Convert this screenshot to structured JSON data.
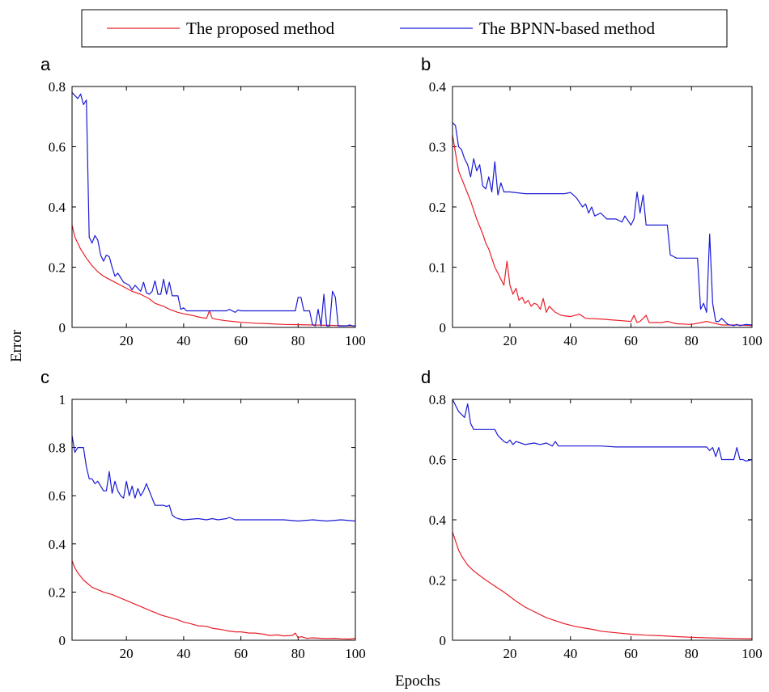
{
  "figure": {
    "xlabel": "Epochs",
    "ylabel": "Error",
    "legend": {
      "placement": "top-center",
      "entries": [
        {
          "label": "The proposed method",
          "color": "#e8202a"
        },
        {
          "label": "The BPNN-based method",
          "color": "#1a1ad6"
        }
      ]
    }
  },
  "chart_data": [
    {
      "type": "line",
      "panel": "a",
      "xlim": [
        1,
        100
      ],
      "ylim": [
        0,
        0.8
      ],
      "xticks": [
        20,
        40,
        60,
        80,
        100
      ],
      "yticks": [
        0,
        0.2,
        0.4,
        0.6,
        0.8
      ],
      "ytick_labels": [
        "0",
        "0.2",
        "0.4",
        "0.6",
        "0.8"
      ],
      "series": [
        {
          "name": "The proposed method",
          "color": "#e8202a",
          "x": [
            1,
            2,
            4,
            6,
            8,
            10,
            12,
            15,
            18,
            20,
            22,
            25,
            28,
            30,
            33,
            35,
            38,
            40,
            43,
            45,
            48,
            49,
            50,
            52,
            55,
            58,
            60,
            65,
            70,
            75,
            80,
            85,
            90,
            95,
            100
          ],
          "y": [
            0.34,
            0.3,
            0.26,
            0.23,
            0.205,
            0.185,
            0.17,
            0.155,
            0.14,
            0.13,
            0.12,
            0.11,
            0.095,
            0.08,
            0.07,
            0.06,
            0.05,
            0.045,
            0.04,
            0.035,
            0.03,
            0.055,
            0.03,
            0.026,
            0.022,
            0.019,
            0.017,
            0.014,
            0.012,
            0.01,
            0.009,
            0.008,
            0.007,
            0.006,
            0.005
          ]
        },
        {
          "name": "The BPNN-based method",
          "color": "#1a1ad6",
          "x": [
            1,
            2,
            3,
            4,
            5,
            6,
            7,
            8,
            9,
            10,
            11,
            12,
            13,
            14,
            15,
            16,
            17,
            18,
            19,
            20,
            21,
            22,
            23,
            24,
            25,
            26,
            27,
            28,
            29,
            30,
            31,
            32,
            33,
            34,
            35,
            36,
            37,
            38,
            39,
            40,
            41,
            42,
            45,
            50,
            55,
            56,
            58,
            59,
            60,
            65,
            70,
            75,
            79,
            80,
            81,
            82,
            83,
            84,
            85,
            86,
            87,
            88,
            89,
            90,
            91,
            92,
            93,
            94,
            95,
            96,
            97,
            98,
            99,
            100
          ],
          "y": [
            0.78,
            0.77,
            0.76,
            0.775,
            0.74,
            0.755,
            0.3,
            0.28,
            0.305,
            0.29,
            0.24,
            0.22,
            0.24,
            0.235,
            0.2,
            0.17,
            0.18,
            0.165,
            0.15,
            0.145,
            0.14,
            0.125,
            0.14,
            0.13,
            0.12,
            0.15,
            0.115,
            0.11,
            0.12,
            0.155,
            0.11,
            0.11,
            0.16,
            0.11,
            0.15,
            0.105,
            0.105,
            0.105,
            0.06,
            0.065,
            0.055,
            0.055,
            0.055,
            0.055,
            0.055,
            0.06,
            0.05,
            0.058,
            0.055,
            0.055,
            0.055,
            0.055,
            0.055,
            0.1,
            0.1,
            0.055,
            0.055,
            0.055,
            0.01,
            0.005,
            0.06,
            0.005,
            0.11,
            0.005,
            0.005,
            0.12,
            0.1,
            0.005,
            0.005,
            0.005,
            0.005,
            0.008,
            0.005,
            0.005
          ]
        }
      ]
    },
    {
      "type": "line",
      "panel": "b",
      "xlim": [
        1,
        100
      ],
      "ylim": [
        0,
        0.4
      ],
      "xticks": [
        20,
        40,
        60,
        80,
        100
      ],
      "yticks": [
        0,
        0.1,
        0.2,
        0.3,
        0.4
      ],
      "ytick_labels": [
        "0",
        "0.1",
        "0.2",
        "0.3",
        "0.4"
      ],
      "series": [
        {
          "name": "The proposed method",
          "color": "#e8202a",
          "x": [
            1,
            2,
            3,
            5,
            7,
            9,
            11,
            12,
            13,
            15,
            16,
            17,
            18,
            19,
            20,
            21,
            22,
            23,
            24,
            25,
            26,
            27,
            28,
            29,
            30,
            31,
            32,
            33,
            35,
            37,
            40,
            43,
            45,
            50,
            55,
            60,
            61,
            62,
            63,
            65,
            66,
            67,
            70,
            72,
            75,
            80,
            85,
            90,
            95,
            100
          ],
          "y": [
            0.32,
            0.29,
            0.26,
            0.235,
            0.21,
            0.18,
            0.155,
            0.14,
            0.13,
            0.1,
            0.09,
            0.08,
            0.07,
            0.11,
            0.07,
            0.055,
            0.065,
            0.045,
            0.05,
            0.04,
            0.045,
            0.035,
            0.04,
            0.038,
            0.03,
            0.048,
            0.025,
            0.035,
            0.025,
            0.02,
            0.018,
            0.022,
            0.015,
            0.014,
            0.012,
            0.01,
            0.02,
            0.008,
            0.01,
            0.02,
            0.008,
            0.008,
            0.008,
            0.01,
            0.006,
            0.005,
            0.01,
            0.004,
            0.004,
            0.003
          ]
        },
        {
          "name": "The BPNN-based method",
          "color": "#1a1ad6",
          "x": [
            1,
            2,
            3,
            4,
            5,
            6,
            7,
            8,
            9,
            10,
            11,
            12,
            13,
            14,
            15,
            16,
            17,
            18,
            20,
            25,
            30,
            35,
            38,
            40,
            42,
            44,
            45,
            46,
            47,
            48,
            50,
            52,
            55,
            57,
            58,
            60,
            61,
            62,
            63,
            64,
            65,
            66,
            70,
            72,
            73,
            74,
            75,
            80,
            82,
            83,
            84,
            85,
            86,
            87,
            88,
            89,
            90,
            92,
            94,
            95,
            96,
            98,
            100
          ],
          "y": [
            0.34,
            0.335,
            0.3,
            0.295,
            0.28,
            0.27,
            0.25,
            0.28,
            0.26,
            0.27,
            0.235,
            0.23,
            0.25,
            0.225,
            0.275,
            0.22,
            0.24,
            0.225,
            0.225,
            0.222,
            0.222,
            0.222,
            0.222,
            0.224,
            0.215,
            0.2,
            0.205,
            0.19,
            0.2,
            0.185,
            0.19,
            0.18,
            0.18,
            0.175,
            0.185,
            0.17,
            0.18,
            0.225,
            0.19,
            0.22,
            0.17,
            0.17,
            0.17,
            0.17,
            0.12,
            0.118,
            0.115,
            0.115,
            0.115,
            0.03,
            0.04,
            0.025,
            0.155,
            0.04,
            0.01,
            0.01,
            0.015,
            0.005,
            0.003,
            0.005,
            0.003,
            0.005,
            0.004
          ]
        }
      ]
    },
    {
      "type": "line",
      "panel": "c",
      "xlim": [
        1,
        100
      ],
      "ylim": [
        0,
        1
      ],
      "xticks": [
        20,
        40,
        60,
        80,
        100
      ],
      "yticks": [
        0,
        0.2,
        0.4,
        0.6,
        0.8,
        1
      ],
      "ytick_labels": [
        "0",
        "0.2",
        "0.4",
        "0.6",
        "0.8",
        "1"
      ],
      "series": [
        {
          "name": "The proposed method",
          "color": "#e8202a",
          "x": [
            1,
            2,
            3,
            4,
            5,
            6,
            7,
            8,
            10,
            12,
            15,
            18,
            20,
            22,
            25,
            28,
            30,
            32,
            35,
            38,
            40,
            42,
            45,
            48,
            50,
            53,
            55,
            58,
            60,
            63,
            65,
            68,
            70,
            73,
            75,
            78,
            79,
            80,
            81,
            83,
            85,
            88,
            90,
            93,
            95,
            98,
            100
          ],
          "y": [
            0.33,
            0.3,
            0.28,
            0.265,
            0.25,
            0.24,
            0.23,
            0.22,
            0.21,
            0.2,
            0.19,
            0.175,
            0.165,
            0.155,
            0.14,
            0.125,
            0.115,
            0.105,
            0.095,
            0.085,
            0.075,
            0.07,
            0.06,
            0.058,
            0.05,
            0.045,
            0.04,
            0.035,
            0.035,
            0.03,
            0.03,
            0.025,
            0.02,
            0.022,
            0.018,
            0.02,
            0.03,
            0.01,
            0.015,
            0.008,
            0.01,
            0.008,
            0.007,
            0.008,
            0.006,
            0.005,
            0.008
          ]
        },
        {
          "name": "The BPNN-based method",
          "color": "#1a1ad6",
          "x": [
            1,
            2,
            3,
            4,
            5,
            6,
            7,
            8,
            9,
            10,
            11,
            12,
            13,
            14,
            15,
            16,
            17,
            18,
            19,
            20,
            21,
            22,
            23,
            24,
            25,
            26,
            27,
            30,
            33,
            34,
            35,
            36,
            37,
            38,
            40,
            45,
            48,
            50,
            52,
            55,
            56,
            58,
            60,
            65,
            70,
            75,
            80,
            85,
            90,
            95,
            100
          ],
          "y": [
            0.85,
            0.78,
            0.8,
            0.8,
            0.8,
            0.72,
            0.67,
            0.67,
            0.65,
            0.66,
            0.64,
            0.62,
            0.62,
            0.7,
            0.61,
            0.66,
            0.62,
            0.6,
            0.59,
            0.66,
            0.6,
            0.64,
            0.59,
            0.63,
            0.6,
            0.62,
            0.65,
            0.56,
            0.56,
            0.555,
            0.56,
            0.52,
            0.51,
            0.505,
            0.5,
            0.505,
            0.5,
            0.505,
            0.5,
            0.505,
            0.51,
            0.5,
            0.5,
            0.5,
            0.5,
            0.5,
            0.495,
            0.5,
            0.495,
            0.5,
            0.495
          ]
        }
      ]
    },
    {
      "type": "line",
      "panel": "d",
      "xlim": [
        1,
        100
      ],
      "ylim": [
        0,
        0.8
      ],
      "xticks": [
        20,
        40,
        60,
        80,
        100
      ],
      "yticks": [
        0,
        0.2,
        0.4,
        0.6,
        0.8
      ],
      "ytick_labels": [
        "0",
        "0.2",
        "0.4",
        "0.6",
        "0.8"
      ],
      "series": [
        {
          "name": "The proposed method",
          "color": "#e8202a",
          "x": [
            1,
            2,
            3,
            4,
            5,
            6,
            8,
            10,
            12,
            15,
            18,
            20,
            22,
            25,
            28,
            30,
            32,
            35,
            38,
            40,
            42,
            45,
            48,
            50,
            55,
            60,
            65,
            70,
            75,
            80,
            85,
            90,
            95,
            100
          ],
          "y": [
            0.36,
            0.33,
            0.3,
            0.28,
            0.265,
            0.25,
            0.23,
            0.215,
            0.2,
            0.18,
            0.16,
            0.145,
            0.13,
            0.11,
            0.095,
            0.085,
            0.075,
            0.065,
            0.055,
            0.05,
            0.045,
            0.04,
            0.035,
            0.03,
            0.025,
            0.02,
            0.017,
            0.015,
            0.012,
            0.01,
            0.008,
            0.007,
            0.006,
            0.005
          ]
        },
        {
          "name": "The BPNN-based method",
          "color": "#1a1ad6",
          "x": [
            1,
            2,
            3,
            4,
            5,
            6,
            7,
            8,
            10,
            12,
            14,
            15,
            16,
            17,
            18,
            19,
            20,
            21,
            22,
            25,
            28,
            30,
            32,
            34,
            35,
            36,
            38,
            40,
            45,
            50,
            55,
            60,
            65,
            70,
            75,
            80,
            85,
            86,
            87,
            88,
            89,
            90,
            92,
            94,
            95,
            96,
            97,
            98,
            100
          ],
          "y": [
            0.8,
            0.78,
            0.76,
            0.75,
            0.74,
            0.785,
            0.72,
            0.7,
            0.7,
            0.7,
            0.7,
            0.7,
            0.68,
            0.67,
            0.66,
            0.655,
            0.665,
            0.65,
            0.66,
            0.65,
            0.655,
            0.65,
            0.655,
            0.645,
            0.66,
            0.645,
            0.645,
            0.645,
            0.645,
            0.645,
            0.642,
            0.642,
            0.642,
            0.642,
            0.642,
            0.642,
            0.642,
            0.63,
            0.64,
            0.61,
            0.64,
            0.6,
            0.6,
            0.6,
            0.64,
            0.6,
            0.6,
            0.595,
            0.6
          ]
        }
      ]
    }
  ]
}
